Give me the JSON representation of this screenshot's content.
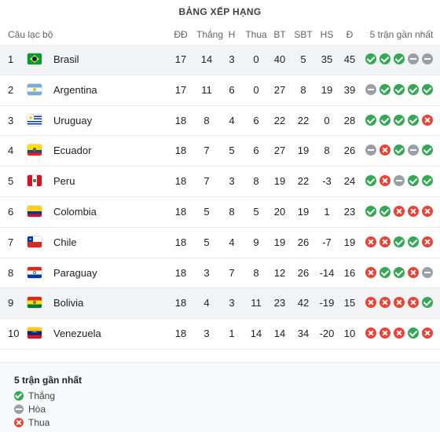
{
  "title": "BẢNG XẾP HẠNG",
  "columns": {
    "club": "Câu lạc bộ",
    "played": "ĐĐ",
    "won": "Thắng",
    "draw": "H",
    "lost": "Thua",
    "gf": "BT",
    "ga": "SBT",
    "gd": "HS",
    "points": "Đ",
    "form": "5 trận gần nhất"
  },
  "teams": [
    {
      "rank": "1",
      "name": "Brasil",
      "flag": "brazil-flag-icon",
      "played": "17",
      "won": "14",
      "draw": "3",
      "lost": "0",
      "gf": "40",
      "ga": "5",
      "gd": "35",
      "points": "45",
      "form": [
        "w",
        "w",
        "w",
        "d",
        "d"
      ]
    },
    {
      "rank": "2",
      "name": "Argentina",
      "flag": "argentina-flag-icon",
      "played": "17",
      "won": "11",
      "draw": "6",
      "lost": "0",
      "gf": "27",
      "ga": "8",
      "gd": "19",
      "points": "39",
      "form": [
        "d",
        "w",
        "w",
        "w",
        "w"
      ]
    },
    {
      "rank": "3",
      "name": "Uruguay",
      "flag": "uruguay-flag-icon",
      "played": "18",
      "won": "8",
      "draw": "4",
      "lost": "6",
      "gf": "22",
      "ga": "22",
      "gd": "0",
      "points": "28",
      "form": [
        "w",
        "w",
        "w",
        "w",
        "l"
      ]
    },
    {
      "rank": "4",
      "name": "Ecuador",
      "flag": "ecuador-flag-icon",
      "played": "18",
      "won": "7",
      "draw": "5",
      "lost": "6",
      "gf": "27",
      "ga": "19",
      "gd": "8",
      "points": "26",
      "form": [
        "d",
        "l",
        "w",
        "d",
        "w"
      ]
    },
    {
      "rank": "5",
      "name": "Peru",
      "flag": "peru-flag-icon",
      "played": "18",
      "won": "7",
      "draw": "3",
      "lost": "8",
      "gf": "19",
      "ga": "22",
      "gd": "-3",
      "points": "24",
      "form": [
        "w",
        "l",
        "d",
        "w",
        "w"
      ]
    },
    {
      "rank": "6",
      "name": "Colombia",
      "flag": "colombia-flag-icon",
      "played": "18",
      "won": "5",
      "draw": "8",
      "lost": "5",
      "gf": "20",
      "ga": "19",
      "gd": "1",
      "points": "23",
      "form": [
        "w",
        "w",
        "l",
        "l",
        "l"
      ]
    },
    {
      "rank": "7",
      "name": "Chile",
      "flag": "chile-flag-icon",
      "played": "18",
      "won": "5",
      "draw": "4",
      "lost": "9",
      "gf": "19",
      "ga": "26",
      "gd": "-7",
      "points": "19",
      "form": [
        "l",
        "l",
        "w",
        "w",
        "l"
      ]
    },
    {
      "rank": "8",
      "name": "Paraguay",
      "flag": "paraguay-flag-icon",
      "played": "18",
      "won": "3",
      "draw": "7",
      "lost": "8",
      "gf": "12",
      "ga": "26",
      "gd": "-14",
      "points": "16",
      "form": [
        "l",
        "w",
        "w",
        "l",
        "d"
      ]
    },
    {
      "rank": "9",
      "name": "Bolivia",
      "flag": "bolivia-flag-icon",
      "played": "18",
      "won": "4",
      "draw": "3",
      "lost": "11",
      "gf": "23",
      "ga": "42",
      "gd": "-19",
      "points": "15",
      "form": [
        "l",
        "l",
        "l",
        "l",
        "w"
      ]
    },
    {
      "rank": "10",
      "name": "Venezuela",
      "flag": "venezuela-flag-icon",
      "played": "18",
      "won": "3",
      "draw": "1",
      "lost": "14",
      "gf": "14",
      "ga": "34",
      "gd": "-20",
      "points": "10",
      "form": [
        "l",
        "l",
        "l",
        "w",
        "l"
      ]
    }
  ],
  "legend": {
    "title": "5 trận gần nhất",
    "win": "Thắng",
    "draw": "Hòa",
    "loss": "Thua"
  },
  "colors": {
    "win": "#34a853",
    "draw": "#9aa0a6",
    "loss": "#ea4335",
    "highlight_row": "#f1f3f4"
  },
  "highlighted_rows": [
    "1",
    "9"
  ]
}
